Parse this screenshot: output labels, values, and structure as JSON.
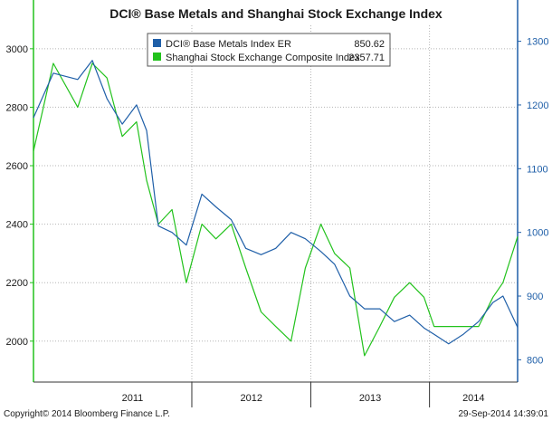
{
  "chart_data": {
    "type": "line",
    "title": "DCI® Base Metals and Shanghai Stock Exchange Index",
    "x_categories": [
      "2011",
      "2012",
      "2013",
      "2014"
    ],
    "x_range": [
      "2010-09",
      "2014-09-29"
    ],
    "left_axis": {
      "ticks": [
        2000,
        2200,
        2400,
        2600,
        2800,
        3000
      ],
      "range": [
        1860,
        3080
      ],
      "color": "#22c21c"
    },
    "right_axis": {
      "ticks": [
        800,
        900,
        1000,
        1100,
        1200,
        1300
      ],
      "range": [
        765,
        1325
      ],
      "color": "#1f5fa8"
    },
    "grid": true,
    "legend_position": "top-center",
    "series": [
      {
        "name": "DCI® Base Metals Index ER",
        "last_value": "850.62",
        "axis": "right",
        "color": "#1f5fa8",
        "x": [
          "2010-09-01",
          "2010-11-01",
          "2011-01-15",
          "2011-03-01",
          "2011-04-15",
          "2011-06-01",
          "2011-07-15",
          "2011-08-15",
          "2011-09-20",
          "2011-11-01",
          "2011-12-15",
          "2012-02-01",
          "2012-03-15",
          "2012-05-01",
          "2012-06-15",
          "2012-08-01",
          "2012-09-15",
          "2012-11-01",
          "2012-12-15",
          "2013-02-01",
          "2013-03-15",
          "2013-05-01",
          "2013-06-15",
          "2013-08-01",
          "2013-09-15",
          "2013-11-01",
          "2013-12-15",
          "2014-01-15",
          "2014-03-01",
          "2014-04-15",
          "2014-06-01",
          "2014-07-15",
          "2014-08-15",
          "2014-09-29"
        ],
        "values": [
          1180,
          1250,
          1240,
          1270,
          1210,
          1170,
          1200,
          1160,
          1010,
          1000,
          980,
          1060,
          1040,
          1020,
          975,
          965,
          975,
          1000,
          990,
          970,
          950,
          900,
          880,
          880,
          860,
          870,
          850,
          840,
          825,
          840,
          860,
          890,
          900,
          851
        ]
      },
      {
        "name": "Shanghai Stock Exchange Composite Index",
        "last_value": "2357.71",
        "axis": "left",
        "color": "#22c21c",
        "x": [
          "2010-09-01",
          "2010-11-01",
          "2011-01-15",
          "2011-03-01",
          "2011-04-15",
          "2011-06-01",
          "2011-07-15",
          "2011-08-15",
          "2011-09-20",
          "2011-11-01",
          "2011-12-15",
          "2012-02-01",
          "2012-03-15",
          "2012-05-01",
          "2012-06-15",
          "2012-08-01",
          "2012-09-15",
          "2012-11-01",
          "2012-12-15",
          "2013-02-01",
          "2013-03-15",
          "2013-05-01",
          "2013-06-15",
          "2013-08-01",
          "2013-09-15",
          "2013-11-01",
          "2013-12-15",
          "2014-01-15",
          "2014-03-01",
          "2014-04-15",
          "2014-06-01",
          "2014-07-15",
          "2014-08-15",
          "2014-09-29"
        ],
        "values": [
          2650,
          2950,
          2800,
          2950,
          2900,
          2700,
          2750,
          2550,
          2400,
          2450,
          2200,
          2400,
          2350,
          2400,
          2250,
          2100,
          2050,
          2000,
          2250,
          2400,
          2300,
          2250,
          1950,
          2050,
          2150,
          2200,
          2150,
          2050,
          2050,
          2050,
          2050,
          2150,
          2200,
          2357.71
        ]
      }
    ]
  },
  "legend": {
    "items": [
      {
        "label": "DCI® Base Metals Index ER",
        "value": "850.62",
        "color": "#1f5fa8"
      },
      {
        "label": "Shanghai Stock Exchange Composite Index",
        "value": "2357.71",
        "color": "#22c21c"
      }
    ]
  },
  "footer": {
    "copyright": "Copyright© 2014 Bloomberg Finance L.P.",
    "timestamp": "29-Sep-2014 14:39:01"
  }
}
